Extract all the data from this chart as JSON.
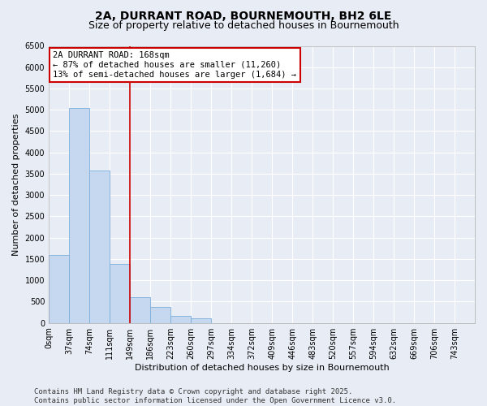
{
  "title_line1": "2A, DURRANT ROAD, BOURNEMOUTH, BH2 6LE",
  "title_line2": "Size of property relative to detached houses in Bournemouth",
  "xlabel": "Distribution of detached houses by size in Bournemouth",
  "ylabel": "Number of detached properties",
  "bar_color": "#c5d8f0",
  "bar_edge_color": "#7aaedb",
  "background_color": "#e8edf5",
  "grid_color": "#ffffff",
  "vline_color": "#cc0000",
  "vline_x": 4,
  "annotation_text": "2A DURRANT ROAD: 168sqm\n← 87% of detached houses are smaller (11,260)\n13% of semi-detached houses are larger (1,684) →",
  "annotation_box_color": "#cc0000",
  "ylim": [
    0,
    6500
  ],
  "yticks": [
    0,
    500,
    1000,
    1500,
    2000,
    2500,
    3000,
    3500,
    4000,
    4500,
    5000,
    5500,
    6000,
    6500
  ],
  "categories": [
    "0sqm",
    "37sqm",
    "74sqm",
    "111sqm",
    "149sqm",
    "186sqm",
    "223sqm",
    "260sqm",
    "297sqm",
    "334sqm",
    "372sqm",
    "409sqm",
    "446sqm",
    "483sqm",
    "520sqm",
    "557sqm",
    "594sqm",
    "632sqm",
    "669sqm",
    "706sqm",
    "743sqm"
  ],
  "values": [
    1600,
    5050,
    3580,
    1380,
    600,
    380,
    160,
    100,
    0,
    0,
    0,
    0,
    0,
    0,
    0,
    0,
    0,
    0,
    0,
    0,
    0
  ],
  "footer_text": "Contains HM Land Registry data © Crown copyright and database right 2025.\nContains public sector information licensed under the Open Government Licence v3.0.",
  "title_fontsize": 10,
  "subtitle_fontsize": 9,
  "axis_label_fontsize": 8,
  "tick_fontsize": 7,
  "footer_fontsize": 6.5,
  "annot_fontsize": 7.5
}
